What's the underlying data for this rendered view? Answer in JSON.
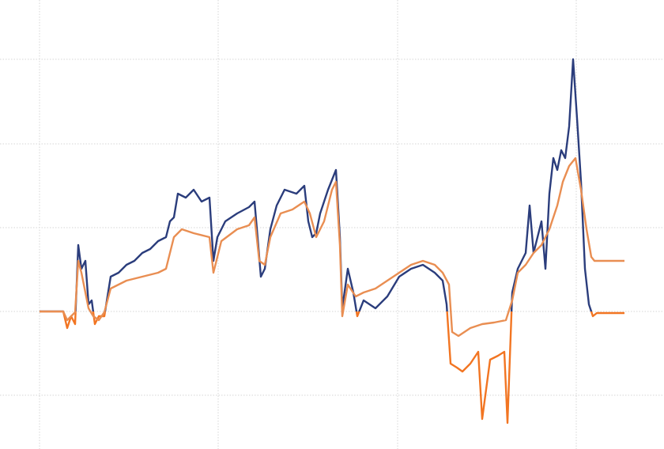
{
  "chart_data": {
    "type": "line",
    "xlim": [
      -50,
      790
    ],
    "ylim": [
      -174,
      394
    ],
    "xticks": [
      0,
      226,
      453,
      679
    ],
    "yticks": [
      -106,
      0,
      106,
      212,
      319
    ],
    "grid": true,
    "series": [
      {
        "color": "#2b3d7c",
        "negative_color": "#f27522",
        "x": [
          0,
          30,
          35,
          40,
          45,
          49,
          53,
          58,
          62,
          66,
          70,
          75,
          82,
          90,
          100,
          110,
          120,
          130,
          140,
          150,
          160,
          165,
          170,
          175,
          185,
          195,
          205,
          215,
          220,
          225,
          235,
          250,
          265,
          272,
          275,
          280,
          285,
          292,
          300,
          310,
          325,
          335,
          340,
          345,
          350,
          355,
          365,
          375,
          380,
          383,
          390,
          397,
          402,
          410,
          425,
          440,
          455,
          470,
          485,
          500,
          510,
          515,
          520,
          528,
          535,
          545,
          555,
          560,
          570,
          580,
          588,
          592,
          598,
          605,
          615,
          620,
          625,
          635,
          640,
          645,
          650,
          655,
          660,
          665,
          670,
          675,
          680,
          685,
          690,
          695,
          700,
          705,
          740
        ],
        "values": [
          0,
          0,
          -21,
          -6,
          -16,
          84,
          54,
          64,
          9,
          14,
          -16,
          -6,
          -6,
          44,
          49,
          59,
          64,
          74,
          79,
          89,
          94,
          114,
          119,
          149,
          144,
          154,
          139,
          144,
          64,
          94,
          114,
          124,
          132,
          139,
          104,
          44,
          54,
          104,
          134,
          154,
          149,
          159,
          114,
          94,
          99,
          124,
          154,
          179,
          94,
          4,
          54,
          24,
          -6,
          14,
          4,
          19,
          44,
          54,
          59,
          49,
          39,
          9,
          -66,
          -71,
          -76,
          -66,
          -51,
          -136,
          -61,
          -56,
          -51,
          -141,
          24,
          54,
          74,
          134,
          74,
          114,
          54,
          149,
          194,
          179,
          204,
          194,
          234,
          319,
          244,
          164,
          54,
          9,
          -6,
          -2,
          -2
        ]
      },
      {
        "color": "#e98e52",
        "x": [
          0,
          30,
          35,
          45,
          49,
          53,
          58,
          62,
          68,
          75,
          82,
          90,
          110,
          130,
          150,
          160,
          170,
          180,
          195,
          215,
          220,
          230,
          250,
          265,
          272,
          278,
          285,
          292,
          305,
          320,
          335,
          342,
          350,
          360,
          370,
          375,
          380,
          383,
          390,
          400,
          410,
          425,
          440,
          455,
          470,
          485,
          500,
          510,
          518,
          522,
          530,
          545,
          560,
          575,
          590,
          598,
          605,
          615,
          625,
          635,
          645,
          655,
          662,
          670,
          678,
          685,
          692,
          698,
          702,
          740
        ],
        "values": [
          0,
          0,
          -11,
          -1,
          64,
          49,
          24,
          4,
          -6,
          -11,
          -1,
          29,
          39,
          44,
          49,
          54,
          94,
          104,
          99,
          94,
          49,
          89,
          104,
          109,
          119,
          64,
          59,
          94,
          124,
          129,
          139,
          124,
          94,
          114,
          154,
          164,
          84,
          -6,
          34,
          19,
          24,
          29,
          39,
          49,
          59,
          64,
          59,
          49,
          34,
          -26,
          -31,
          -21,
          -16,
          -14,
          -11,
          14,
          49,
          59,
          74,
          84,
          104,
          134,
          164,
          184,
          194,
          154,
          104,
          69,
          64,
          64
        ]
      }
    ]
  }
}
